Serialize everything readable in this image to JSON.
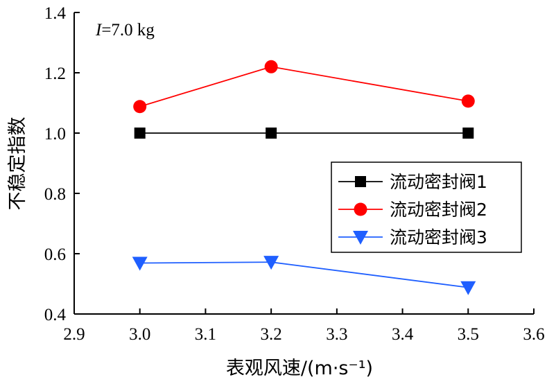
{
  "chart_data": {
    "type": "line",
    "xlabel": "表观风速/(m·s⁻¹)",
    "ylabel": "不稳定指数",
    "xlim": [
      2.9,
      3.6
    ],
    "ylim": [
      0.4,
      1.4
    ],
    "xticks": [
      "2.9",
      "3.0",
      "3.1",
      "3.2",
      "3.3",
      "3.4",
      "3.5",
      "3.6"
    ],
    "yticks": [
      "0.4",
      "0.6",
      "0.8",
      "1.0",
      "1.2",
      "1.4"
    ],
    "annotation": {
      "italic": "I",
      "rest": "=7.0 kg"
    },
    "legend_position": "center-right",
    "grid": false,
    "x": [
      3.0,
      3.2,
      3.5
    ],
    "series": [
      {
        "name": "流动密封阀1",
        "values": [
          1.0,
          1.0,
          1.0
        ],
        "color": "#000000",
        "marker": "square"
      },
      {
        "name": "流动密封阀2",
        "values": [
          1.088,
          1.22,
          1.106
        ],
        "color": "#ff0000",
        "marker": "circle"
      },
      {
        "name": "流动密封阀3",
        "values": [
          0.569,
          0.572,
          0.488
        ],
        "color": "#1f5fff",
        "marker": "triangle-down"
      }
    ]
  }
}
